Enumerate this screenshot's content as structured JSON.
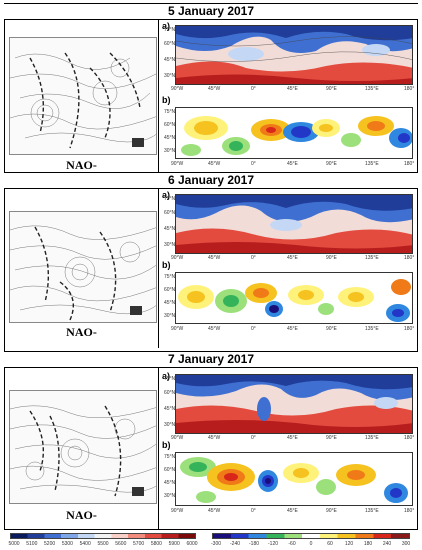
{
  "sections": [
    {
      "date": "5 January 2017",
      "regime": "NAO-",
      "label_a": "a)",
      "label_b": "b)"
    },
    {
      "date": "6 January 2017",
      "regime": "NAO-",
      "label_a": "a)",
      "label_b": "b)"
    },
    {
      "date": "7 January 2017",
      "regime": "NAO-",
      "label_a": "a)",
      "label_b": "b)"
    }
  ],
  "map_axes": {
    "lat_a": [
      "75°N",
      "60°N",
      "45°N",
      "30°N"
    ],
    "lat_b": [
      "75°N",
      "60°N",
      "45°N",
      "30°N"
    ],
    "lon": [
      "90°W",
      "45°W",
      "0°",
      "45°E",
      "90°E",
      "135°E",
      "180°"
    ]
  },
  "colorbar_left": {
    "ticks": [
      "5000",
      "5100",
      "5200",
      "5300",
      "5400",
      "5500",
      "5600",
      "5700",
      "5800",
      "5900",
      "6000"
    ],
    "colors": [
      "#0a1a5c",
      "#1f3d99",
      "#3f6fd1",
      "#7fa7e8",
      "#c4d8f5",
      "#f3f3f3",
      "#f8cfc9",
      "#f08d80",
      "#e34b3f",
      "#b81d1d",
      "#7a0a0a"
    ]
  },
  "colorbar_right": {
    "ticks": [
      "-300",
      "-240",
      "-180",
      "-120",
      "-60",
      "0",
      "60",
      "120",
      "180",
      "240",
      "300"
    ],
    "colors": [
      "#1a0f7a",
      "#2236c8",
      "#2f87e0",
      "#34b35a",
      "#9be07a",
      "#ffffff",
      "#fff27a",
      "#f5c21f",
      "#f07a18",
      "#d9261a",
      "#8a1a1a"
    ]
  }
}
